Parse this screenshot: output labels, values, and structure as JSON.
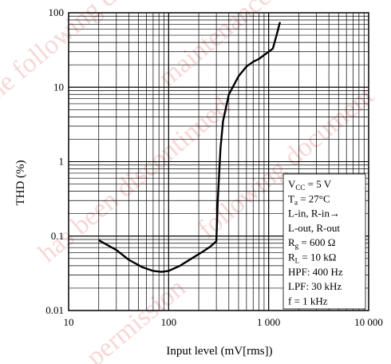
{
  "chart_data": {
    "type": "line",
    "xlabel": "Input level  (mV[rms])",
    "ylabel": "THD  (%)",
    "x_scale": "log",
    "y_scale": "log",
    "xlim": [
      10,
      10000
    ],
    "ylim": [
      0.01,
      100
    ],
    "x_ticks": [
      "10",
      "100",
      "1 000",
      "10 000"
    ],
    "y_ticks": [
      "100",
      "10",
      "1",
      "0.1",
      "0.01"
    ],
    "grid": true,
    "series": [
      {
        "x": [
          20,
          30,
          40,
          55,
          70,
          85,
          100,
          130,
          170,
          220,
          260,
          300,
          310,
          330,
          350,
          400,
          500,
          600,
          700,
          800,
          900,
          1000,
          1100,
          1200,
          1300
        ],
        "y": [
          0.088,
          0.065,
          0.048,
          0.038,
          0.034,
          0.033,
          0.034,
          0.04,
          0.05,
          0.062,
          0.072,
          0.085,
          0.3,
          1.5,
          3.5,
          8,
          14,
          19,
          22,
          24,
          27,
          30,
          33,
          50,
          75
        ]
      }
    ],
    "conditions": [
      {
        "main": "V",
        "sub": "CC",
        "rest": " = 5 V"
      },
      {
        "main": "T",
        "sub": "a",
        "rest": " = 27°C"
      },
      {
        "main": "L-in, R-in→",
        "sub": "",
        "rest": ""
      },
      {
        "main": "L-out, R-out",
        "sub": "",
        "rest": ""
      },
      {
        "main": "R",
        "sub": "g",
        "rest": " = 600 Ω"
      },
      {
        "main": "R",
        "sub": "L",
        "rest": " = 10 kΩ"
      },
      {
        "main": "HPF: 400 Hz",
        "sub": "",
        "rest": ""
      },
      {
        "main": "LPF: 30 kHz",
        "sub": "",
        "rest": ""
      },
      {
        "main": "f = 1 kHz",
        "sub": "",
        "rest": ""
      }
    ],
    "watermark": [
      "The following document",
      "has been discontinued",
      "maintenance/discontinued",
      "following document",
      "permission"
    ]
  }
}
